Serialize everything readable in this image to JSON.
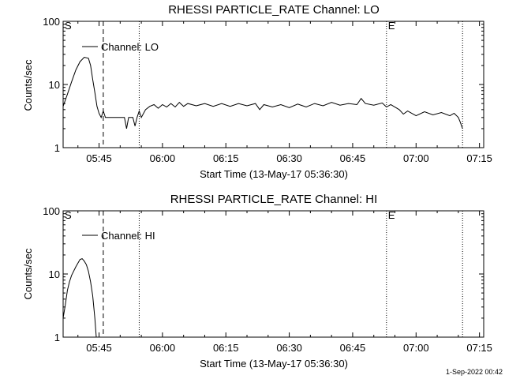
{
  "footer": {
    "timestamp": "1-Sep-2022 00:42"
  },
  "chart_data": [
    {
      "type": "line",
      "title": "RHESSI PARTICLE_RATE Channel: LO",
      "xlabel": "Start Time (13-May-17 05:36:30)",
      "ylabel": "Counts/sec",
      "y_scale": "log",
      "ylim": [
        1,
        100
      ],
      "xlim": [
        "05:36:30",
        "07:16:00"
      ],
      "x_ticks": [
        "05:45",
        "06:00",
        "06:15",
        "06:30",
        "06:45",
        "07:00",
        "07:15"
      ],
      "y_ticks": [
        "1",
        "10",
        "100"
      ],
      "legend": {
        "label": "Channel: LO",
        "position": "top-left"
      },
      "markers": [
        {
          "label": "S",
          "time": "05:36:30",
          "style": "none"
        },
        {
          "label": "",
          "time": "05:46:00",
          "style": "dashed"
        },
        {
          "label": "",
          "time": "05:54:30",
          "style": "dotted"
        },
        {
          "label": "E",
          "time": "06:53:00",
          "style": "dotted"
        },
        {
          "label": "",
          "time": "07:11:00",
          "style": "dotted"
        }
      ],
      "series": [
        {
          "name": "Channel: LO",
          "points": [
            [
              "05:36:30",
              4.5
            ],
            [
              "05:37:30",
              7.0
            ],
            [
              "05:38:30",
              11
            ],
            [
              "05:39:30",
              17
            ],
            [
              "05:40:30",
              23
            ],
            [
              "05:41:30",
              27
            ],
            [
              "05:42:30",
              26
            ],
            [
              "05:43:00",
              20
            ],
            [
              "05:43:30",
              12
            ],
            [
              "05:44:00",
              7.5
            ],
            [
              "05:44:30",
              4.5
            ],
            [
              "05:45:00",
              3.5
            ],
            [
              "05:45:30",
              3.0
            ],
            [
              "05:46:00",
              3.8
            ],
            [
              "05:46:30",
              3.0
            ],
            [
              "05:50:00",
              3.0
            ],
            [
              "05:51:00",
              3.0
            ],
            [
              "05:51:30",
              2.0
            ],
            [
              "05:52:00",
              3.0
            ],
            [
              "05:53:00",
              3.0
            ],
            [
              "05:53:30",
              2.2
            ],
            [
              "05:54:00",
              3.0
            ],
            [
              "05:54:30",
              3.8
            ],
            [
              "05:55:00",
              3.0
            ],
            [
              "05:56:00",
              4.0
            ],
            [
              "05:57:00",
              4.5
            ],
            [
              "05:58:00",
              4.8
            ],
            [
              "05:59:00",
              4.2
            ],
            [
              "06:00:00",
              4.8
            ],
            [
              "06:01:00",
              4.4
            ],
            [
              "06:02:00",
              5.0
            ],
            [
              "06:03:00",
              4.4
            ],
            [
              "06:04:00",
              5.2
            ],
            [
              "06:05:00",
              4.5
            ],
            [
              "06:06:00",
              5.0
            ],
            [
              "06:08:00",
              4.6
            ],
            [
              "06:10:00",
              5.0
            ],
            [
              "06:12:00",
              4.5
            ],
            [
              "06:14:00",
              5.0
            ],
            [
              "06:16:00",
              4.5
            ],
            [
              "06:18:00",
              5.0
            ],
            [
              "06:20:00",
              4.6
            ],
            [
              "06:22:00",
              5.0
            ],
            [
              "06:23:00",
              4.0
            ],
            [
              "06:24:00",
              4.8
            ],
            [
              "06:26:00",
              4.4
            ],
            [
              "06:28:00",
              4.8
            ],
            [
              "06:30:00",
              4.3
            ],
            [
              "06:32:00",
              4.9
            ],
            [
              "06:34:00",
              4.4
            ],
            [
              "06:36:00",
              5.0
            ],
            [
              "06:38:00",
              4.6
            ],
            [
              "06:40:00",
              5.2
            ],
            [
              "06:42:00",
              4.7
            ],
            [
              "06:44:00",
              5.0
            ],
            [
              "06:46:00",
              4.8
            ],
            [
              "06:47:00",
              6.0
            ],
            [
              "06:48:00",
              5.0
            ],
            [
              "06:50:00",
              4.7
            ],
            [
              "06:52:00",
              5.1
            ],
            [
              "06:53:00",
              4.4
            ],
            [
              "06:54:00",
              4.8
            ],
            [
              "06:56:00",
              4.0
            ],
            [
              "06:57:00",
              3.4
            ],
            [
              "06:58:00",
              3.8
            ],
            [
              "07:00:00",
              3.2
            ],
            [
              "07:02:00",
              3.7
            ],
            [
              "07:04:00",
              3.3
            ],
            [
              "07:06:00",
              3.6
            ],
            [
              "07:08:00",
              3.2
            ],
            [
              "07:09:00",
              3.5
            ],
            [
              "07:10:00",
              3.0
            ],
            [
              "07:10:30",
              2.5
            ],
            [
              "07:11:00",
              2.0
            ]
          ]
        }
      ]
    },
    {
      "type": "line",
      "title": "RHESSI PARTICLE_RATE Channel: HI",
      "xlabel": "Start Time (13-May-17 05:36:30)",
      "ylabel": "Counts/sec",
      "y_scale": "log",
      "ylim": [
        1,
        100
      ],
      "xlim": [
        "05:36:30",
        "07:16:00"
      ],
      "x_ticks": [
        "05:45",
        "06:00",
        "06:15",
        "06:30",
        "06:45",
        "07:00",
        "07:15"
      ],
      "y_ticks": [
        "1",
        "10",
        "100"
      ],
      "legend": {
        "label": "Channel: HI",
        "position": "top-left"
      },
      "markers": [
        {
          "label": "S",
          "time": "05:36:30",
          "style": "none"
        },
        {
          "label": "",
          "time": "05:46:00",
          "style": "dashed"
        },
        {
          "label": "",
          "time": "05:54:30",
          "style": "dotted"
        },
        {
          "label": "E",
          "time": "06:53:00",
          "style": "dotted"
        },
        {
          "label": "",
          "time": "07:11:00",
          "style": "dotted"
        }
      ],
      "series": [
        {
          "name": "Channel: HI",
          "points": [
            [
              "05:36:30",
              2.0
            ],
            [
              "05:37:00",
              3.2
            ],
            [
              "05:37:30",
              5.5
            ],
            [
              "05:38:00",
              7.5
            ],
            [
              "05:38:30",
              9.5
            ],
            [
              "05:39:30",
              13
            ],
            [
              "05:40:30",
              17
            ],
            [
              "05:41:00",
              17.5
            ],
            [
              "05:41:30",
              16
            ],
            [
              "05:42:00",
              14
            ],
            [
              "05:42:30",
              11
            ],
            [
              "05:43:00",
              7.5
            ],
            [
              "05:43:30",
              4.5
            ],
            [
              "05:44:00",
              2.0
            ],
            [
              "05:44:20",
              1.0
            ]
          ]
        }
      ]
    }
  ]
}
